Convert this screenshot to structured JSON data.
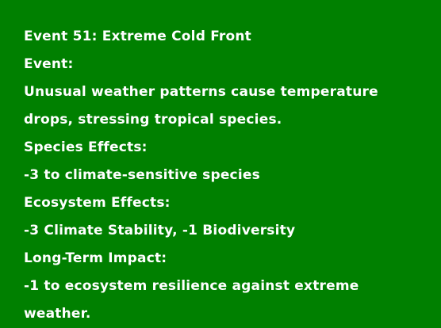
{
  "event": {
    "title": "Event 51: Extreme Cold Front",
    "event_heading": "Event:",
    "description_line1": "Unusual weather patterns cause temperature",
    "description_line2": "drops, stressing tropical species.",
    "species_heading": "Species Effects:",
    "species_text": "-3 to climate-sensitive species",
    "ecosystem_heading": "Ecosystem Effects:",
    "ecosystem_text": "-3 Climate Stability, -1 Biodiversity",
    "longterm_heading": "Long-Term Impact:",
    "longterm_line1": "-1 to ecosystem resilience against extreme",
    "longterm_line2": "weather."
  },
  "colors": {
    "background": "#008000",
    "text": "#ffffff"
  }
}
